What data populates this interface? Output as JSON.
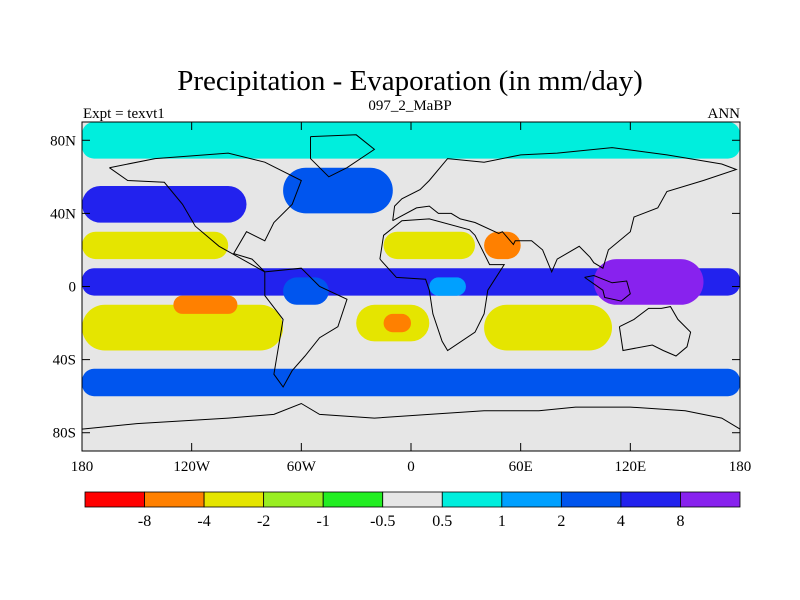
{
  "chart_data": {
    "type": "heatmap",
    "title": "Precipitation - Evaporation (in mm/day)",
    "subtitle": "097_2_MaBP",
    "left_label": "Expt = texvt1",
    "right_label": "ANN",
    "xlim": [
      -180,
      180
    ],
    "ylim": [
      -90,
      90
    ],
    "x_ticks": [
      {
        "value": -180,
        "label": "180"
      },
      {
        "value": -120,
        "label": "120W"
      },
      {
        "value": -60,
        "label": "60W"
      },
      {
        "value": 0,
        "label": "0"
      },
      {
        "value": 60,
        "label": "60E"
      },
      {
        "value": 120,
        "label": "120E"
      },
      {
        "value": 180,
        "label": "180"
      }
    ],
    "y_ticks": [
      {
        "value": 80,
        "label": "80N"
      },
      {
        "value": 40,
        "label": "40N"
      },
      {
        "value": 0,
        "label": "0"
      },
      {
        "value": -40,
        "label": "40S"
      },
      {
        "value": -80,
        "label": "80S"
      }
    ],
    "colorbar": {
      "colors": [
        "#ff0000",
        "#ff8000",
        "#e5e500",
        "#99ee22",
        "#22ee22",
        "#e6e6e6",
        "#00eedd",
        "#00a0ff",
        "#0055ee",
        "#2222ee",
        "#8822ee"
      ],
      "labels": [
        "-8",
        "-4",
        "-2",
        "-1",
        "-0.5",
        "0.5",
        "1",
        "2",
        "4",
        "8"
      ]
    },
    "regions": [
      {
        "name": "tropical-rain-belt",
        "level": 9,
        "lon": [
          -180,
          180
        ],
        "lat": [
          -5,
          10
        ]
      },
      {
        "name": "west-pacific-warm-pool",
        "level": 10,
        "lon": [
          100,
          160
        ],
        "lat": [
          -10,
          15
        ]
      },
      {
        "name": "north-pacific-storm-track",
        "level": 9,
        "lon": [
          -180,
          -90
        ],
        "lat": [
          35,
          55
        ]
      },
      {
        "name": "north-atlantic-storm-track",
        "level": 8,
        "lon": [
          -70,
          -10
        ],
        "lat": [
          40,
          65
        ]
      },
      {
        "name": "southern-ocean-storm-track",
        "level": 8,
        "lon": [
          -180,
          180
        ],
        "lat": [
          -60,
          -45
        ]
      },
      {
        "name": "north-pacific-subtropics",
        "level": 2,
        "lon": [
          -180,
          -100
        ],
        "lat": [
          15,
          30
        ]
      },
      {
        "name": "south-pacific-subtropics",
        "level": 2,
        "lon": [
          -180,
          -70
        ],
        "lat": [
          -35,
          -10
        ]
      },
      {
        "name": "sahara",
        "level": 2,
        "lon": [
          -15,
          35
        ],
        "lat": [
          15,
          30
        ]
      },
      {
        "name": "arabia",
        "level": 1,
        "lon": [
          40,
          60
        ],
        "lat": [
          15,
          30
        ]
      },
      {
        "name": "south-atlantic-subtropics",
        "level": 2,
        "lon": [
          -30,
          10
        ],
        "lat": [
          -30,
          -10
        ]
      },
      {
        "name": "south-indian-subtropics",
        "level": 2,
        "lon": [
          40,
          110
        ],
        "lat": [
          -35,
          -10
        ]
      },
      {
        "name": "east-pacific-dry-tongue",
        "level": 1,
        "lon": [
          -130,
          -95
        ],
        "lat": [
          -15,
          -5
        ]
      },
      {
        "name": "south-atlantic-dry-core",
        "level": 1,
        "lon": [
          -15,
          0
        ],
        "lat": [
          -25,
          -15
        ]
      },
      {
        "name": "arctic-ocean",
        "level": 6,
        "lon": [
          -180,
          180
        ],
        "lat": [
          70,
          90
        ]
      },
      {
        "name": "amazon",
        "level": 8,
        "lon": [
          -70,
          -45
        ],
        "lat": [
          -10,
          5
        ]
      },
      {
        "name": "central-africa",
        "level": 7,
        "lon": [
          10,
          30
        ],
        "lat": [
          -5,
          5
        ]
      }
    ]
  }
}
